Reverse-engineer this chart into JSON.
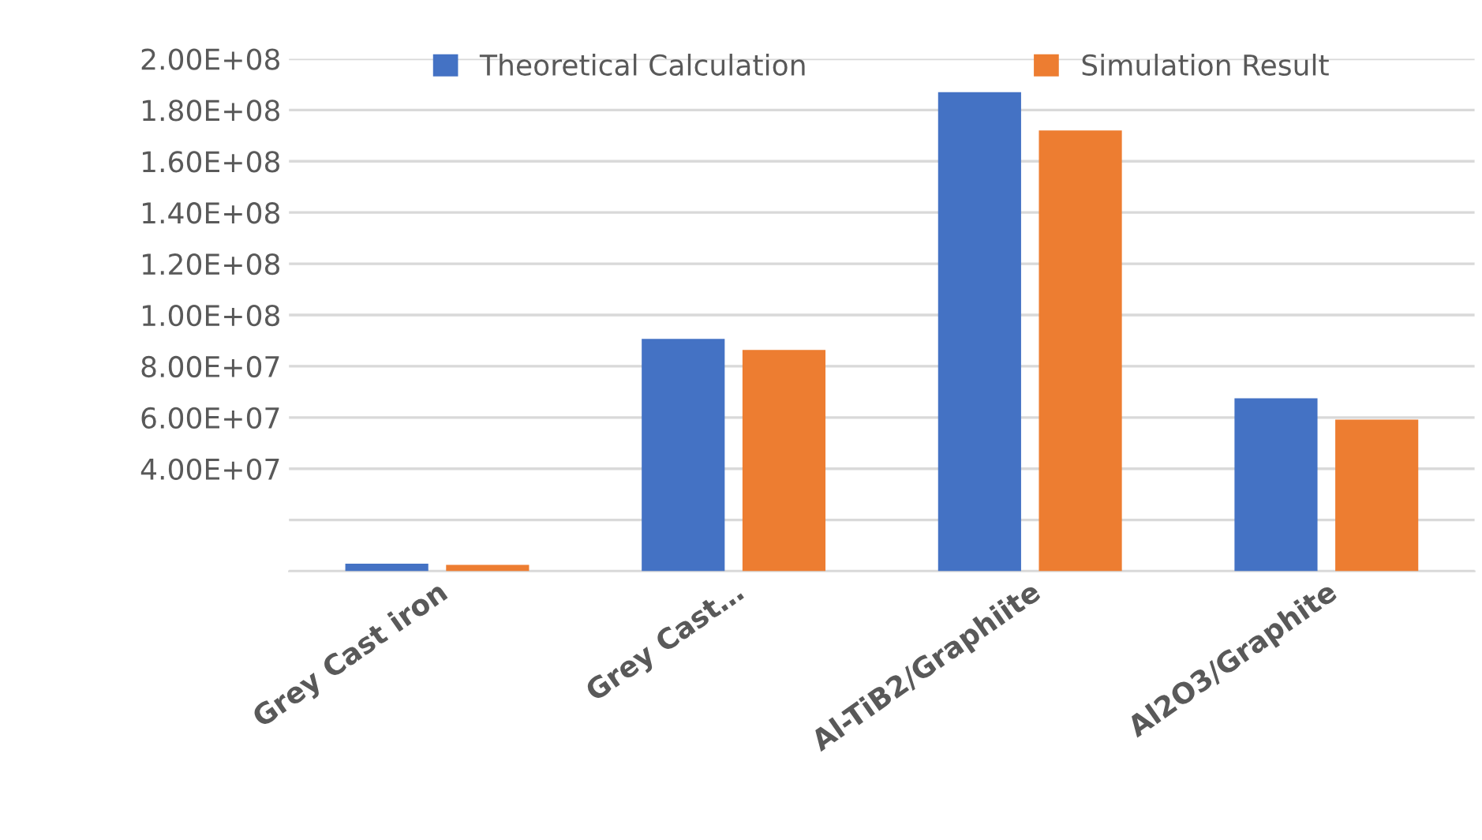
{
  "chart_data": {
    "type": "bar",
    "categories": [
      "Grey Cast iron",
      "Grey Cast…",
      "Al-TiB2/Graphiite",
      "Al2O3/Graphite"
    ],
    "series": [
      {
        "name": "Theoretical Calculation",
        "color": "#4472c4",
        "values": [
          2900000.0,
          90700000.0,
          187000000.0,
          67500000.0
        ]
      },
      {
        "name": "Simulation Result",
        "color": "#ed7d31",
        "values": [
          2500000.0,
          86400000.0,
          172000000.0,
          59200000.0
        ]
      }
    ],
    "ylim": [
      0,
      200000000.0
    ],
    "yticks": [
      {
        "value": 0,
        "label": null
      },
      {
        "value": 20000000.0,
        "label": null
      },
      {
        "value": 40000000.0,
        "label": "4.00E+07"
      },
      {
        "value": 60000000.0,
        "label": "6.00E+07"
      },
      {
        "value": 80000000.0,
        "label": "8.00E+07"
      },
      {
        "value": 100000000.0,
        "label": "1.00E+08"
      },
      {
        "value": 120000000.0,
        "label": "1.20E+08"
      },
      {
        "value": 140000000.0,
        "label": "1.40E+08"
      },
      {
        "value": 160000000.0,
        "label": "1.60E+08"
      },
      {
        "value": 180000000.0,
        "label": "1.80E+08"
      },
      {
        "value": 200000000.0,
        "label": "2.00E+08"
      }
    ],
    "grid": "y",
    "legend": "top"
  }
}
